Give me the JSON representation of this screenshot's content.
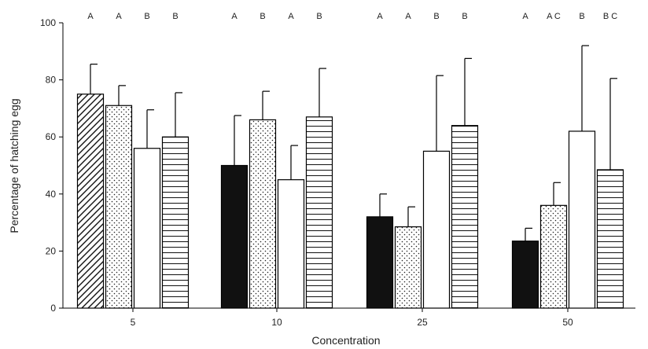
{
  "chart_data": {
    "type": "bar",
    "xlabel": "Concentration",
    "ylabel": "Percentage of hatching egg",
    "ylim": [
      0,
      100
    ],
    "yticks": [
      0,
      20,
      40,
      60,
      80,
      100
    ],
    "grid": false,
    "categories": [
      "5",
      "10",
      "25",
      "50"
    ],
    "series": [
      {
        "pattern": [
          "diagonal",
          "solid",
          "solid",
          "solid"
        ],
        "values": [
          75,
          50,
          32,
          23.5
        ],
        "errors": [
          10.5,
          17.5,
          8,
          4.5
        ],
        "letters": [
          "A",
          "A",
          "A",
          "A"
        ]
      },
      {
        "pattern": [
          "dots",
          "dots",
          "dots",
          "dots"
        ],
        "values": [
          71,
          66,
          28.5,
          36
        ],
        "errors": [
          7,
          10,
          7,
          8
        ],
        "letters": [
          "A",
          "B",
          "A",
          "A C"
        ]
      },
      {
        "pattern": [
          "white",
          "white",
          "white",
          "white"
        ],
        "values": [
          56,
          45,
          55,
          62
        ],
        "errors": [
          13.5,
          12,
          26.5,
          30
        ],
        "letters": [
          "B",
          "A",
          "B",
          "B"
        ]
      },
      {
        "pattern": [
          "hlines",
          "hlines",
          "hlines",
          "hlines"
        ],
        "values": [
          60,
          67,
          64,
          48.5
        ],
        "errors": [
          15.5,
          17,
          23.5,
          32
        ],
        "letters": [
          "B",
          "B",
          "B",
          "B C"
        ]
      }
    ]
  }
}
